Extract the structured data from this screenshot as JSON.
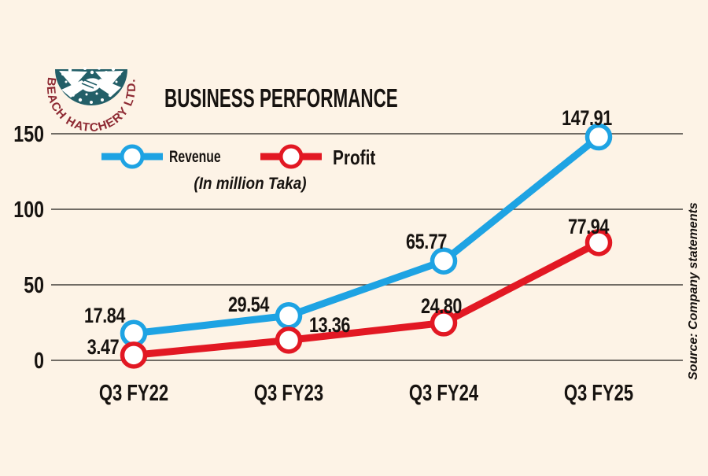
{
  "page": {
    "background": "#fdf3e6",
    "text_color": "#171310",
    "grid_color": "#43403a"
  },
  "logo": {
    "text": "BEACH HATCHERY LTD.",
    "teal": "#235f68",
    "maroon": "#8e2a33"
  },
  "header": {
    "title": "BUSINESS PERFORMANCE"
  },
  "legend": {
    "unit_note": "(In million Taka)"
  },
  "source_note": "Source: Company statements",
  "chart_data": {
    "type": "line",
    "title": "BUSINESS PERFORMANCE",
    "unit": "In million Taka",
    "categories": [
      "Q3 FY22",
      "Q3 FY23",
      "Q3 FY24",
      "Q3 FY25"
    ],
    "series": [
      {
        "name": "Revenue",
        "color": "#1ea3e3",
        "values": [
          17.84,
          29.54,
          65.77,
          147.91
        ]
      },
      {
        "name": "Profit",
        "color": "#e21823",
        "values": [
          3.47,
          13.36,
          24.8,
          77.94
        ]
      }
    ],
    "y_ticks": [
      0,
      50,
      100,
      150
    ],
    "ylim": [
      0,
      150
    ],
    "grid": true,
    "legend_position": "top-left",
    "value_labels": true,
    "value_label_format": "2dp"
  }
}
